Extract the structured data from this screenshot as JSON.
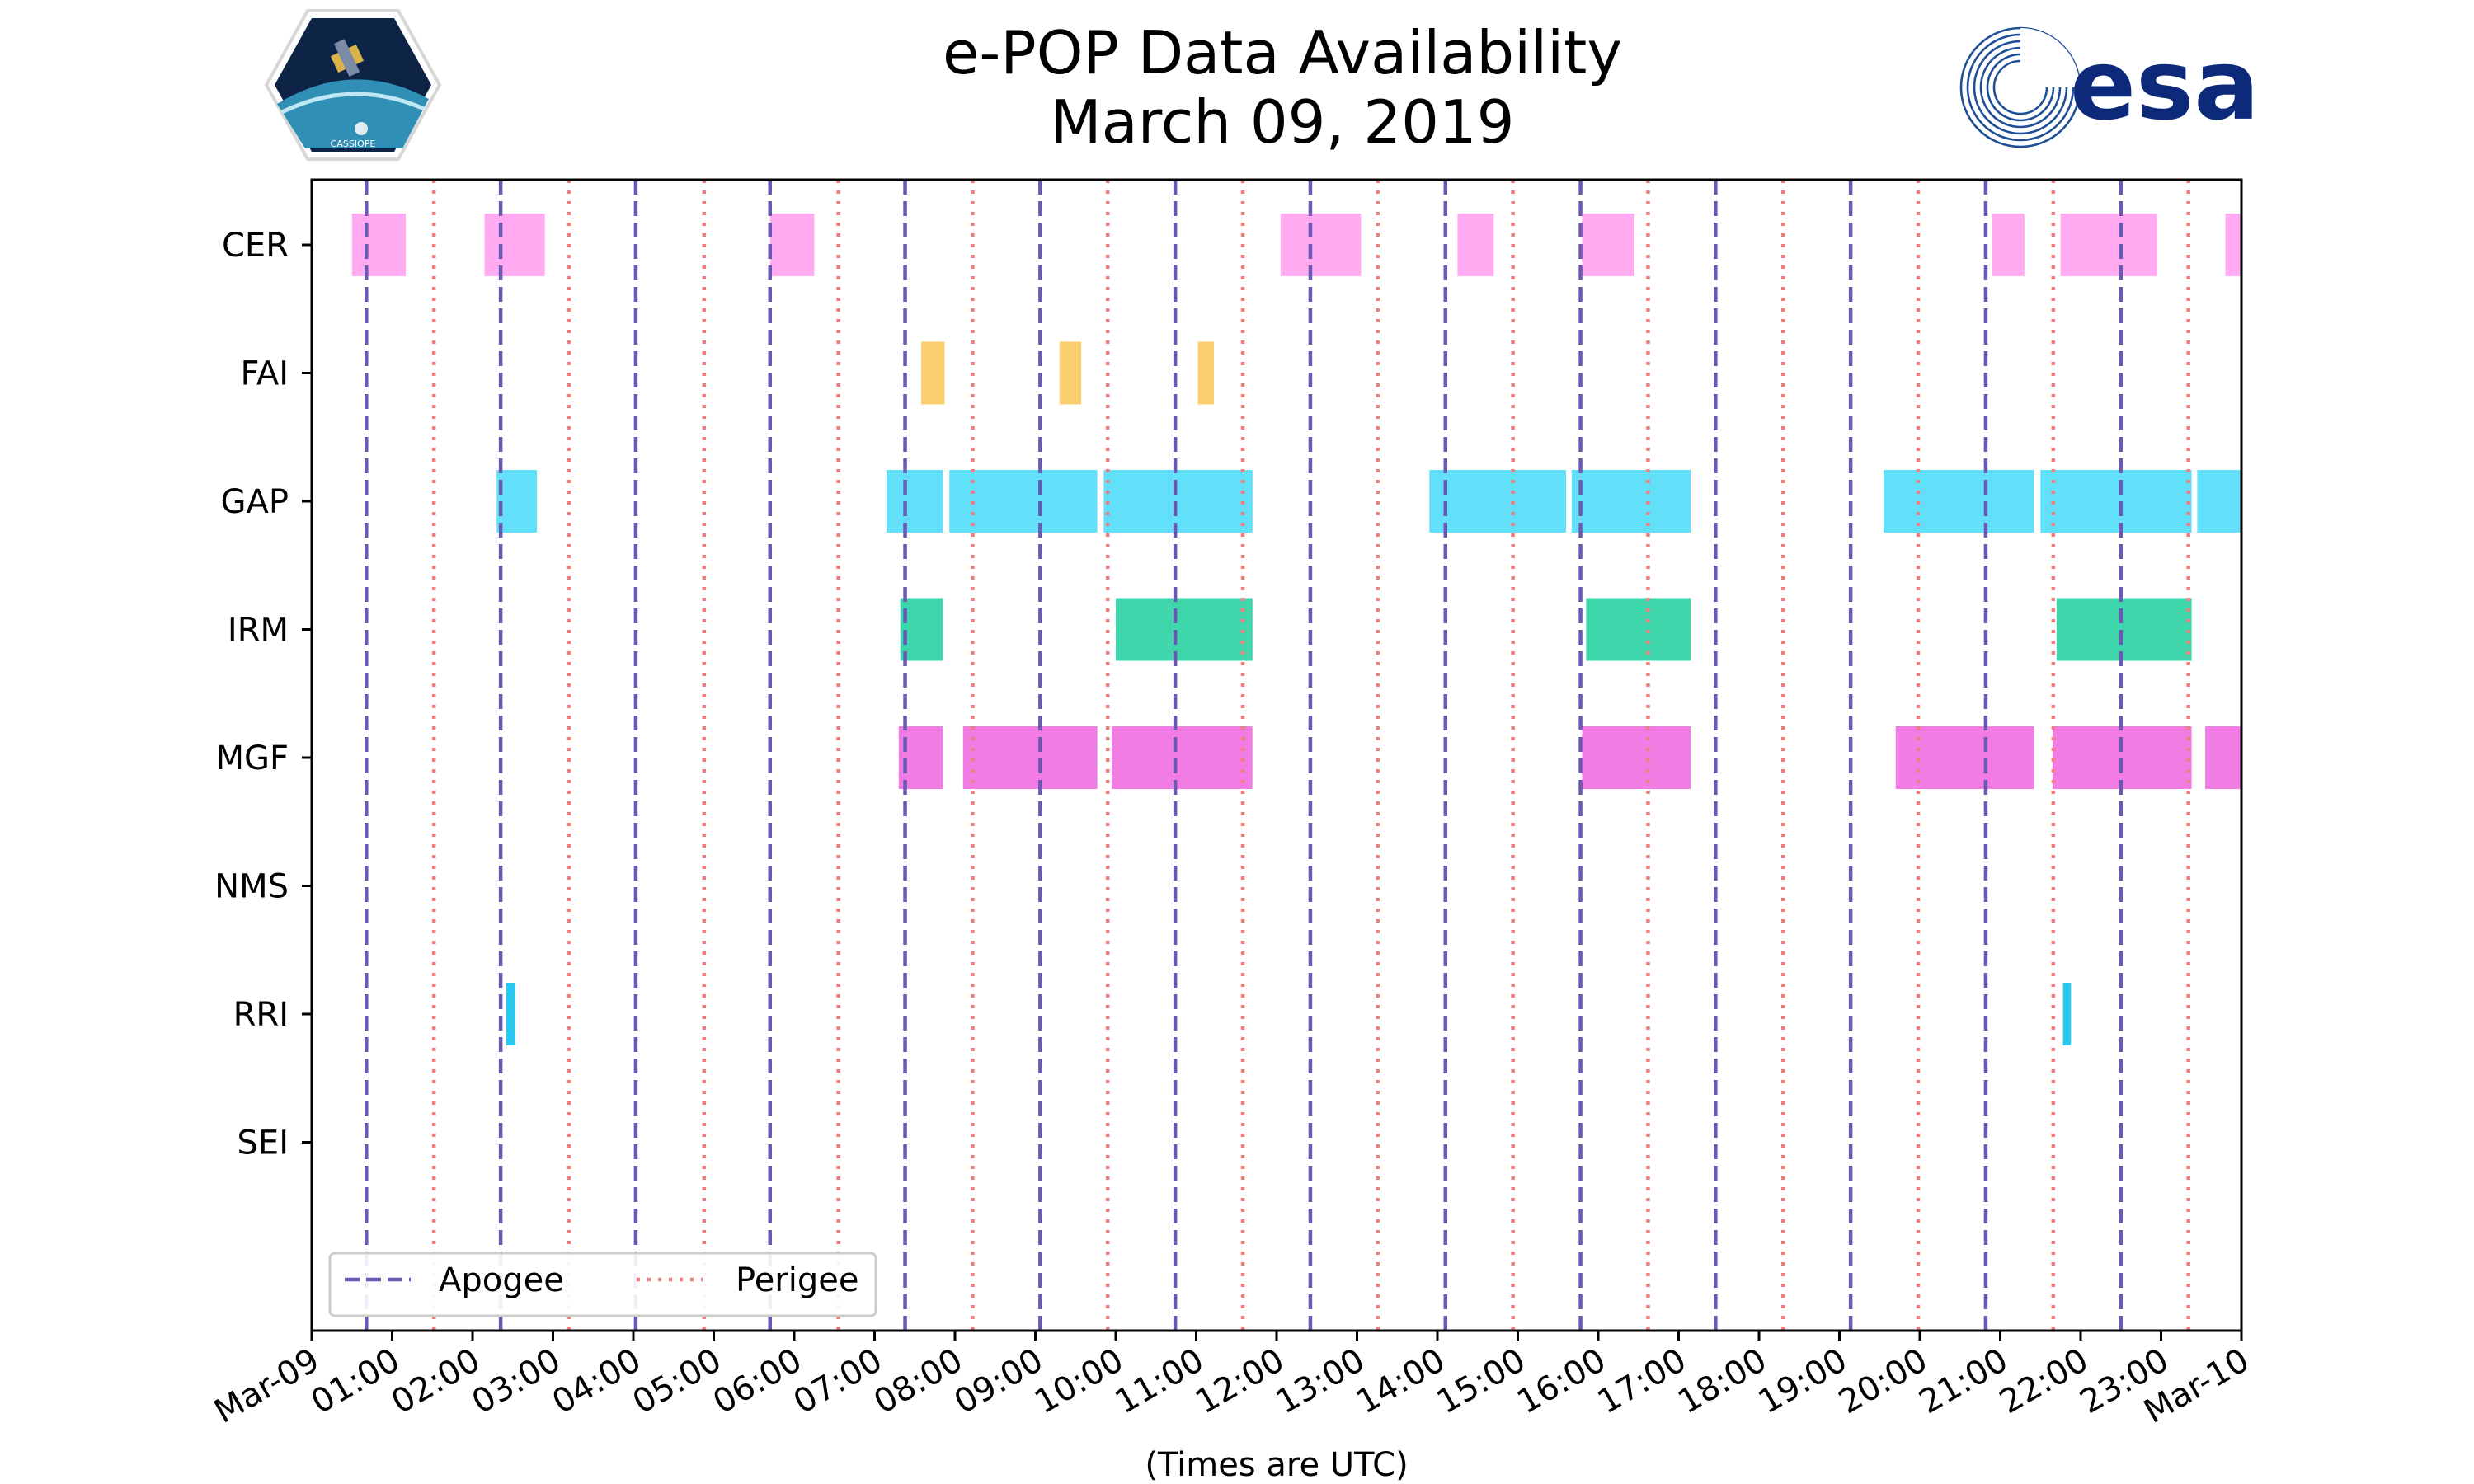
{
  "header": {
    "title_line1": "e-POP Data Availability",
    "title_line2": "March 09, 2019",
    "cassiope_logo_text": "CASSIOPE",
    "esa_logo_text": "esa"
  },
  "chart_data": {
    "type": "timeline",
    "title": "e-POP Data Availability March 09, 2019",
    "xlabel": "(Times are UTC)",
    "ylabel": "",
    "x_unit": "hours UTC",
    "xlim": [
      0,
      24
    ],
    "x_tick_labels": [
      "Mar-09",
      "01:00",
      "02:00",
      "03:00",
      "04:00",
      "05:00",
      "06:00",
      "07:00",
      "08:00",
      "09:00",
      "10:00",
      "11:00",
      "12:00",
      "13:00",
      "14:00",
      "15:00",
      "16:00",
      "17:00",
      "18:00",
      "19:00",
      "20:00",
      "21:00",
      "22:00",
      "23:00",
      "Mar-10"
    ],
    "instruments": [
      "CER",
      "FAI",
      "GAP",
      "IRM",
      "MGF",
      "NMS",
      "RRI",
      "SEI"
    ],
    "colors": {
      "CER": "#ffaaf1",
      "FAI": "#f9cf6f",
      "GAP": "#62dff9",
      "IRM": "#3fd6ac",
      "MGF": "#f17ce4",
      "RRI": "#29c9ef",
      "apogee": "#6a59b3",
      "perigee": "#f17e7f"
    },
    "intervals": {
      "CER": [
        [
          0.5,
          1.17
        ],
        [
          2.15,
          2.9
        ],
        [
          5.7,
          6.25
        ],
        [
          12.05,
          13.05
        ],
        [
          14.25,
          14.7
        ],
        [
          15.8,
          16.45
        ],
        [
          20.9,
          21.3
        ],
        [
          21.75,
          22.95
        ],
        [
          23.8,
          24.0
        ]
      ],
      "FAI": [
        [
          7.58,
          7.87
        ],
        [
          9.3,
          9.57
        ],
        [
          11.02,
          11.22
        ]
      ],
      "GAP": [
        [
          2.3,
          2.8
        ],
        [
          7.15,
          7.85
        ],
        [
          7.93,
          9.77
        ],
        [
          9.85,
          11.7
        ],
        [
          13.9,
          15.6
        ],
        [
          15.67,
          17.15
        ],
        [
          19.55,
          21.42
        ],
        [
          21.5,
          23.38
        ],
        [
          23.45,
          24.0
        ]
      ],
      "IRM": [
        [
          7.32,
          7.85
        ],
        [
          10.0,
          11.7
        ],
        [
          15.85,
          17.15
        ],
        [
          21.7,
          23.38
        ]
      ],
      "MGF": [
        [
          7.3,
          7.85
        ],
        [
          8.1,
          9.77
        ],
        [
          9.95,
          11.7
        ],
        [
          15.8,
          17.15
        ],
        [
          19.7,
          21.42
        ],
        [
          21.65,
          23.38
        ],
        [
          23.55,
          24.0
        ]
      ],
      "NMS": [],
      "RRI": [
        [
          2.42,
          2.53
        ],
        [
          21.78,
          21.88
        ]
      ],
      "SEI": []
    },
    "apogee_hours": [
      0.68,
      2.35,
      4.03,
      5.7,
      7.38,
      9.06,
      10.74,
      12.42,
      14.1,
      15.78,
      17.46,
      19.14,
      20.82,
      22.5
    ],
    "perigee_hours": [
      1.52,
      3.2,
      4.88,
      6.55,
      8.22,
      9.9,
      11.58,
      13.26,
      14.94,
      16.62,
      18.3,
      19.98,
      21.66,
      23.34
    ],
    "legend": {
      "position": "lower-left",
      "entries": [
        {
          "label": "Apogee",
          "style": "dashed"
        },
        {
          "label": "Perigee",
          "style": "dotted"
        }
      ]
    }
  }
}
